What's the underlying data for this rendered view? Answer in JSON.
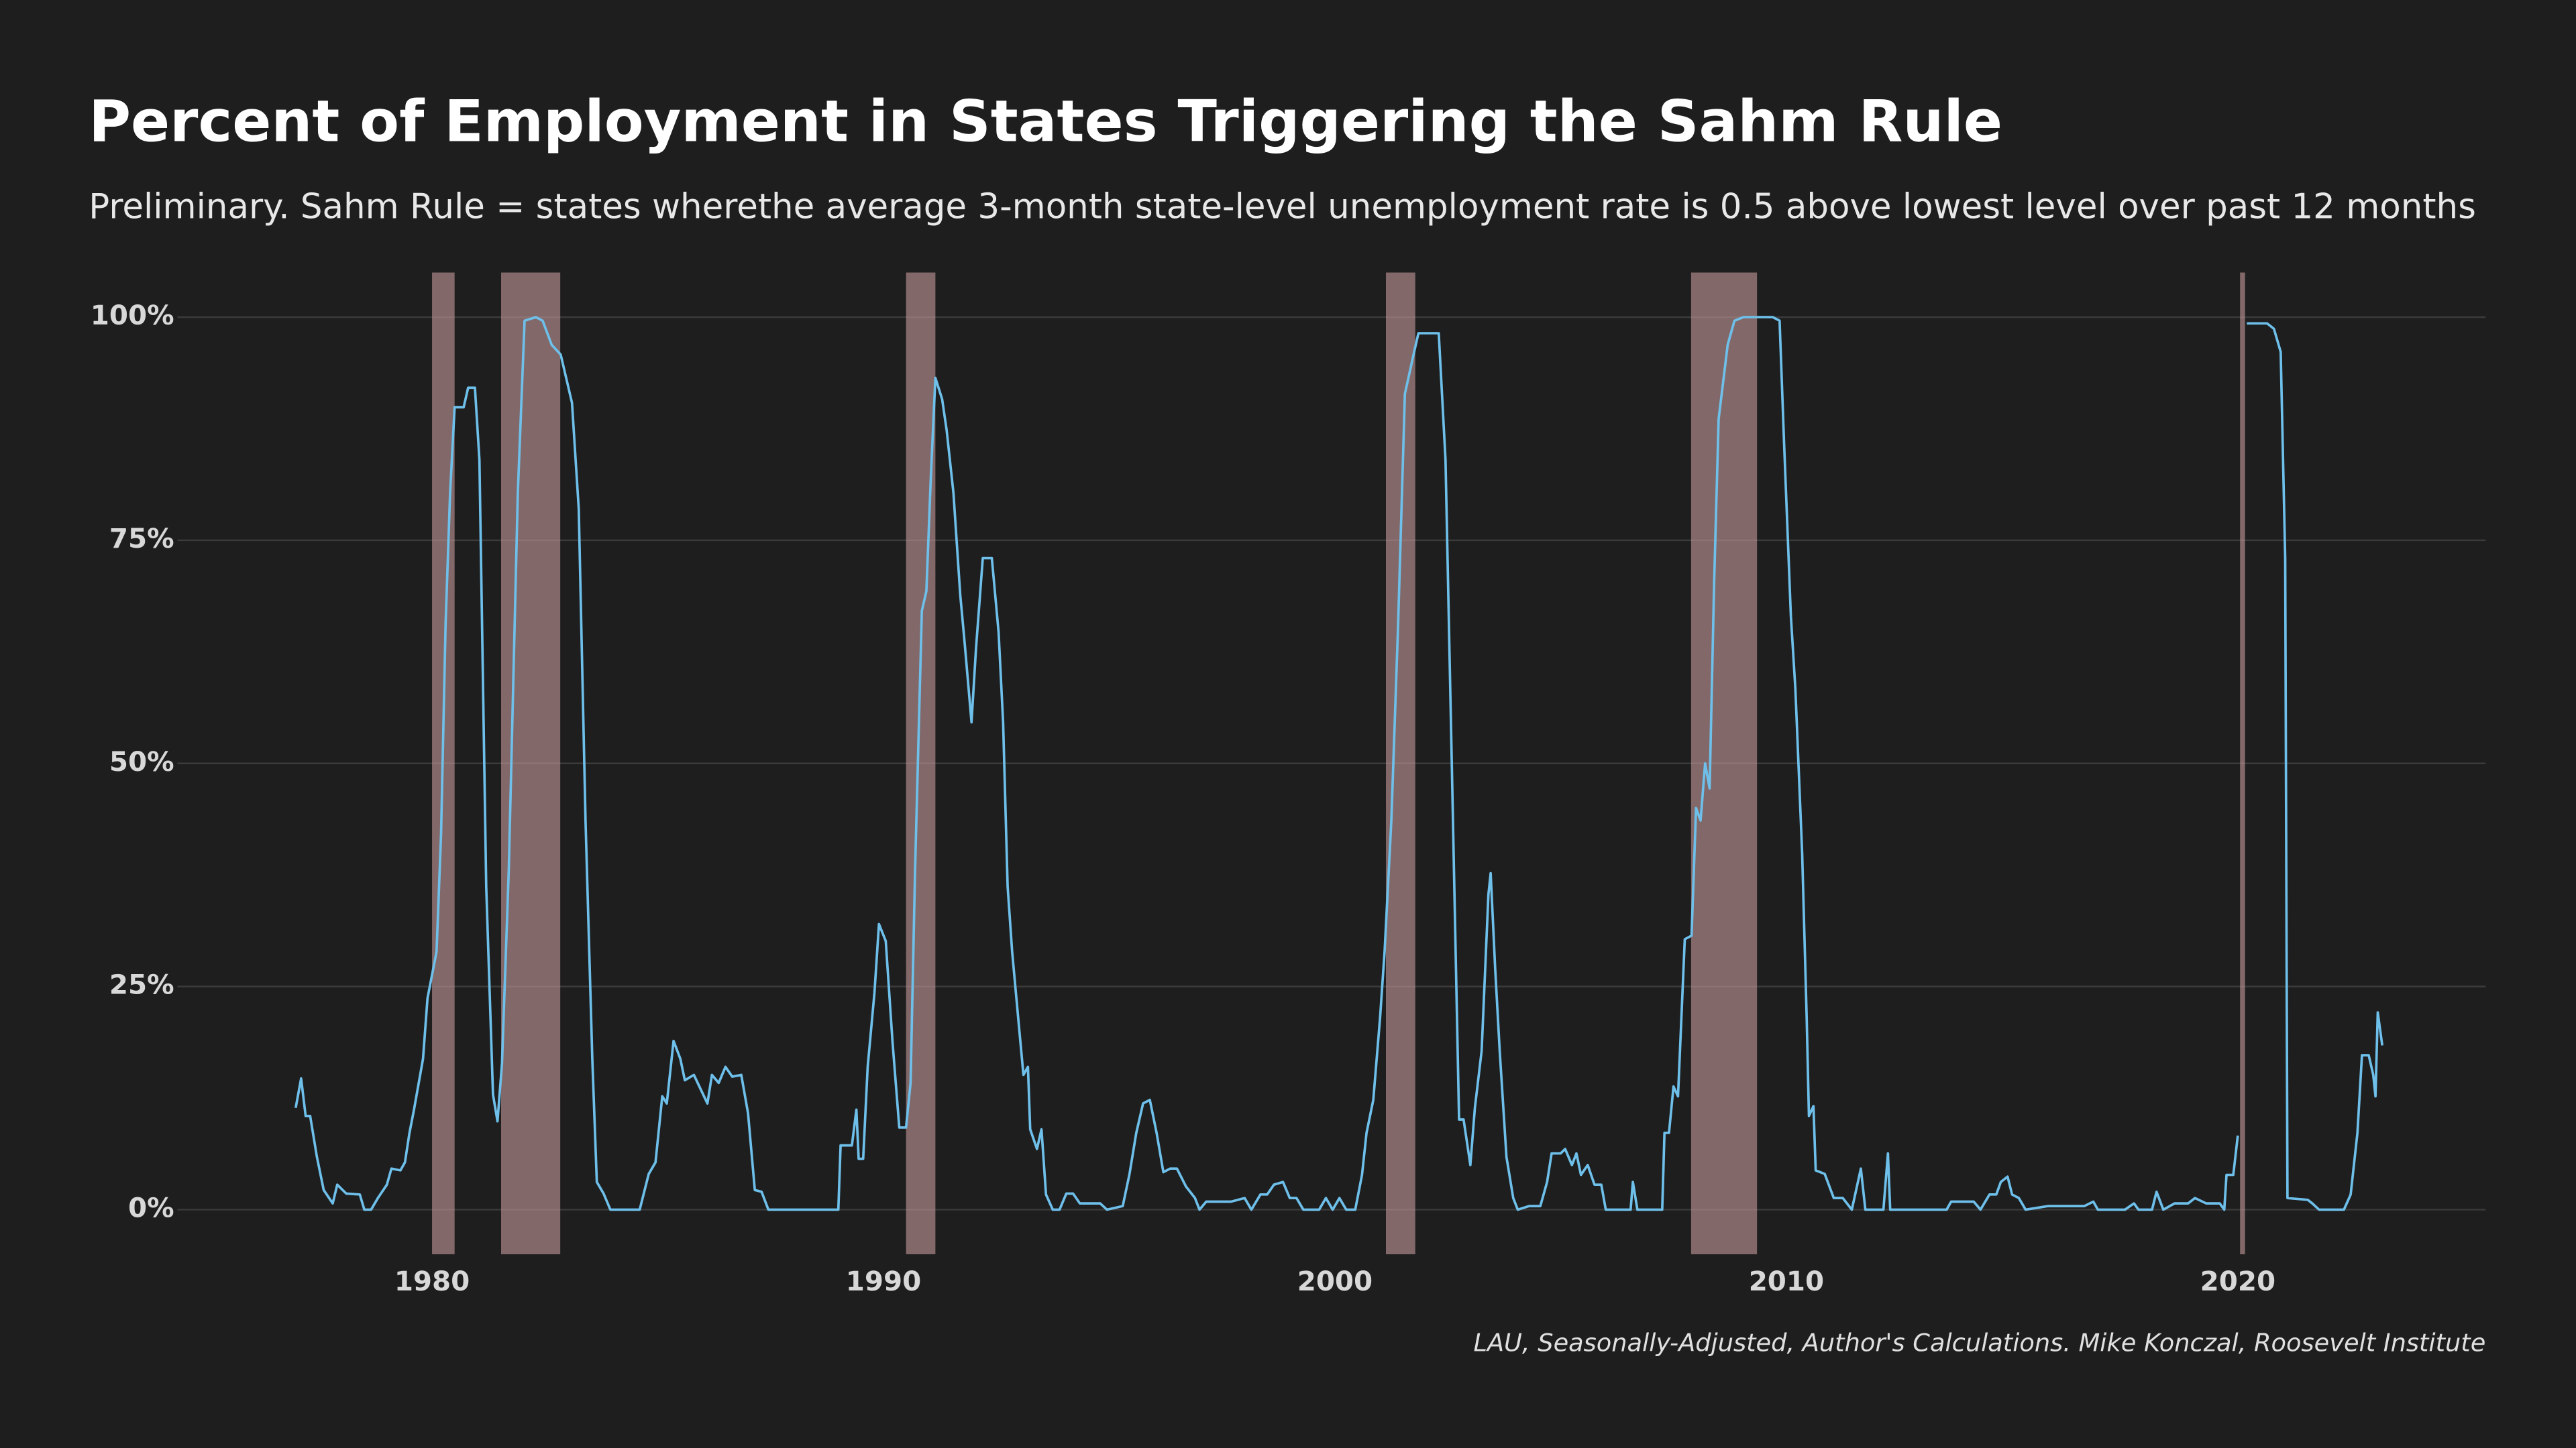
{
  "chart_data": {
    "type": "line",
    "title": "Percent of Employment in States Triggering the Sahm Rule",
    "subtitle": "Preliminary. Sahm Rule = states wherethe average 3-month state-level unemployment rate is 0.5 above lowest level over past 12 months",
    "caption": "LAU, Seasonally-Adjusted, Author's Calculations. Mike Konczal, Roosevelt Institute",
    "xlim": [
      1974.36,
      2025.49
    ],
    "ylim": [
      -5,
      105
    ],
    "xticks": [
      1980,
      1990,
      2000,
      2010,
      2020
    ],
    "yticks": [
      {
        "value": 0,
        "label": "0%"
      },
      {
        "value": 25,
        "label": "25%"
      },
      {
        "value": 50,
        "label": "50%"
      },
      {
        "value": 75,
        "label": "75%"
      },
      {
        "value": 100,
        "label": "100%"
      }
    ],
    "grid": true,
    "recession_color": "#c49a9a",
    "recessions": [
      [
        1980.0,
        1980.5
      ],
      [
        1981.53,
        1982.84
      ],
      [
        1990.5,
        1991.15
      ],
      [
        2001.13,
        2001.78
      ],
      [
        2007.89,
        2009.35
      ],
      [
        2020.05,
        2020.16
      ]
    ],
    "x": [
      1976.98,
      1977.1,
      1977.2,
      1977.3,
      1977.45,
      1977.6,
      1977.8,
      1977.9,
      1978.1,
      1978.4,
      1978.5,
      1978.65,
      1978.8,
      1979.0,
      1979.1,
      1979.3,
      1979.4,
      1979.5,
      1979.6,
      1979.8,
      1979.9,
      1980.1,
      1980.2,
      1980.3,
      1980.4,
      1980.5,
      1980.7,
      1980.8,
      1980.95,
      1981.05,
      1981.2,
      1981.35,
      1981.45,
      1981.55,
      1981.7,
      1981.9,
      1982.05,
      1982.3,
      1982.45,
      1982.65,
      1982.85,
      1983.1,
      1983.25,
      1983.4,
      1983.55,
      1983.65,
      1983.8,
      1983.95,
      1984.6,
      1984.8,
      1984.95,
      1985.1,
      1985.2,
      1985.35,
      1985.5,
      1985.6,
      1985.8,
      1986.1,
      1986.2,
      1986.35,
      1986.5,
      1986.65,
      1986.85,
      1987.0,
      1987.15,
      1987.3,
      1987.45,
      1989.0,
      1989.05,
      1989.3,
      1989.4,
      1989.45,
      1989.55,
      1989.65,
      1989.8,
      1989.9,
      1990.05,
      1990.2,
      1990.35,
      1990.5,
      1990.6,
      1990.7,
      1990.85,
      1990.95,
      1991.05,
      1991.15,
      1991.3,
      1991.4,
      1991.55,
      1991.7,
      1991.8,
      1991.95,
      1992.05,
      1992.2,
      1992.4,
      1992.55,
      1992.65,
      1992.75,
      1992.85,
      1993.0,
      1993.1,
      1993.2,
      1993.25,
      1993.4,
      1993.5,
      1993.6,
      1993.75,
      1993.9,
      1994.05,
      1994.2,
      1994.35,
      1994.8,
      1994.95,
      1995.3,
      1995.45,
      1995.6,
      1995.75,
      1995.9,
      1996.05,
      1996.2,
      1996.35,
      1996.5,
      1996.7,
      1996.9,
      1997.0,
      1997.15,
      1997.7,
      1998.0,
      1998.15,
      1998.35,
      1998.5,
      1998.65,
      1998.85,
      1999.0,
      1999.15,
      1999.3,
      1999.65,
      1999.8,
      1999.95,
      2000.1,
      2000.25,
      2000.45,
      2000.6,
      2000.7,
      2000.85,
      2001.0,
      2001.1,
      2001.25,
      2001.4,
      2001.55,
      2001.75,
      2001.85,
      2002.05,
      2002.3,
      2002.45,
      2002.6,
      2002.75,
      2002.85,
      2003.0,
      2003.1,
      2003.25,
      2003.4,
      2003.45,
      2003.55,
      2003.65,
      2003.8,
      2003.95,
      2004.05,
      2004.3,
      2004.55,
      2004.7,
      2004.8,
      2005.0,
      2005.1,
      2005.25,
      2005.35,
      2005.45,
      2005.6,
      2005.75,
      2005.9,
      2006.0,
      2006.55,
      2006.6,
      2006.7,
      2007.25,
      2007.3,
      2007.4,
      2007.5,
      2007.6,
      2007.75,
      2007.9,
      2008.0,
      2008.1,
      2008.2,
      2008.3,
      2008.4,
      2008.5,
      2008.7,
      2008.85,
      2009.05,
      2009.7,
      2009.85,
      2009.95,
      2010.1,
      2010.2,
      2010.35,
      2010.45,
      2010.5,
      2010.6,
      2010.65,
      2010.85,
      2011.05,
      2011.25,
      2011.45,
      2011.65,
      2011.75,
      2012.15,
      2012.25,
      2012.3,
      2013.55,
      2013.65,
      2014.15,
      2014.3,
      2014.5,
      2014.65,
      2014.75,
      2014.9,
      2015.0,
      2015.15,
      2015.3,
      2015.8,
      2016.6,
      2016.8,
      2016.9,
      2017.5,
      2017.7,
      2017.8,
      2018.1,
      2018.2,
      2018.35,
      2018.6,
      2018.9,
      2019.05,
      2019.3,
      2019.6,
      2019.7,
      2019.75,
      2019.9,
      2020.0,
      2020.1,
      2020.2,
      2020.65,
      2020.8,
      2020.95,
      2021.05,
      2021.1,
      2021.55,
      2021.65,
      2021.8,
      2022.35,
      2022.5,
      2022.65,
      2022.75,
      2022.9,
      2023.0,
      2023.05,
      2023.1,
      2023.2
    ],
    "series": [
      {
        "name": "Percent of employment",
        "color": "#6ec0ea",
        "values": [
          11.4,
          14.7,
          10.5,
          10.5,
          5.9,
          2.2,
          0.7,
          2.8,
          1.8,
          1.7,
          0,
          0,
          1.3,
          2.8,
          4.6,
          4.4,
          5.3,
          8.6,
          11.2,
          16.9,
          23.7,
          28.9,
          42.1,
          65.6,
          80.3,
          89.9,
          89.9,
          92.1,
          92.1,
          84,
          36.2,
          12.9,
          9.9,
          16.4,
          38.1,
          80.3,
          99.6,
          100,
          99.6,
          96.9,
          95.8,
          90.4,
          78.5,
          43.6,
          16.9,
          3.1,
          1.8,
          0,
          0,
          4,
          5.3,
          12.7,
          11.9,
          18.9,
          16.9,
          14.5,
          15.1,
          11.9,
          15.1,
          14.2,
          16,
          14.9,
          15.1,
          10.8,
          2.2,
          2,
          0,
          0,
          7.2,
          7.2,
          11.2,
          5.7,
          5.7,
          16,
          24.3,
          32,
          30.1,
          18.8,
          9.2,
          9.2,
          14.2,
          38.1,
          67.1,
          69.3,
          82.2,
          93.2,
          90.8,
          87.3,
          80.3,
          68.9,
          63.4,
          54.6,
          62.9,
          73,
          73,
          64.7,
          54.6,
          36.2,
          28.9,
          20.6,
          15.1,
          16,
          9,
          6.8,
          9,
          1.7,
          0,
          0,
          1.8,
          1.8,
          0.7,
          0.7,
          0,
          0.4,
          4,
          8.6,
          11.9,
          12.3,
          8.6,
          4.2,
          4.6,
          4.6,
          2.6,
          1.3,
          0,
          0.9,
          0.9,
          1.3,
          0,
          1.7,
          1.7,
          2.8,
          3.1,
          1.3,
          1.3,
          0,
          0,
          1.3,
          0,
          1.3,
          0,
          0,
          3.9,
          8.6,
          12.3,
          21.5,
          28.9,
          43.6,
          65.6,
          91.4,
          96,
          98.2,
          98.2,
          98.2,
          84,
          47.2,
          10.1,
          10.1,
          5,
          11.4,
          17.8,
          35.3,
          37.7,
          27,
          17.8,
          5.9,
          1.3,
          0,
          0.4,
          0.4,
          3.1,
          6.3,
          6.3,
          6.8,
          5,
          6.3,
          3.9,
          5,
          2.8,
          2.8,
          0,
          0,
          3.1,
          0,
          0,
          8.6,
          8.6,
          13.8,
          12.7,
          30.3,
          30.7,
          45,
          43.6,
          50,
          47.2,
          70.2,
          88.6,
          96.9,
          99.6,
          100,
          100,
          99.6,
          85.8,
          66.5,
          58.3,
          39.9,
          21.5,
          10.5,
          11.6,
          4.4,
          4,
          1.3,
          1.3,
          0,
          4.6,
          0,
          0,
          6.3,
          0,
          0,
          0.9,
          0.9,
          0,
          1.7,
          1.7,
          3.1,
          3.7,
          1.7,
          1.3,
          0,
          0.4,
          0.4,
          0.9,
          0,
          0,
          0.7,
          0,
          0,
          2,
          0,
          0.7,
          0.7,
          1.3,
          0.7,
          0.7,
          0,
          3.9,
          3.9,
          8.3,
          null,
          99.3,
          99.3,
          98.7,
          96.1,
          73,
          1.3,
          1.1,
          0.7,
          0,
          0,
          1.7,
          8.6,
          17.3,
          17.3,
          15.1,
          12.7,
          22.1,
          18.4
        ]
      }
    ]
  }
}
